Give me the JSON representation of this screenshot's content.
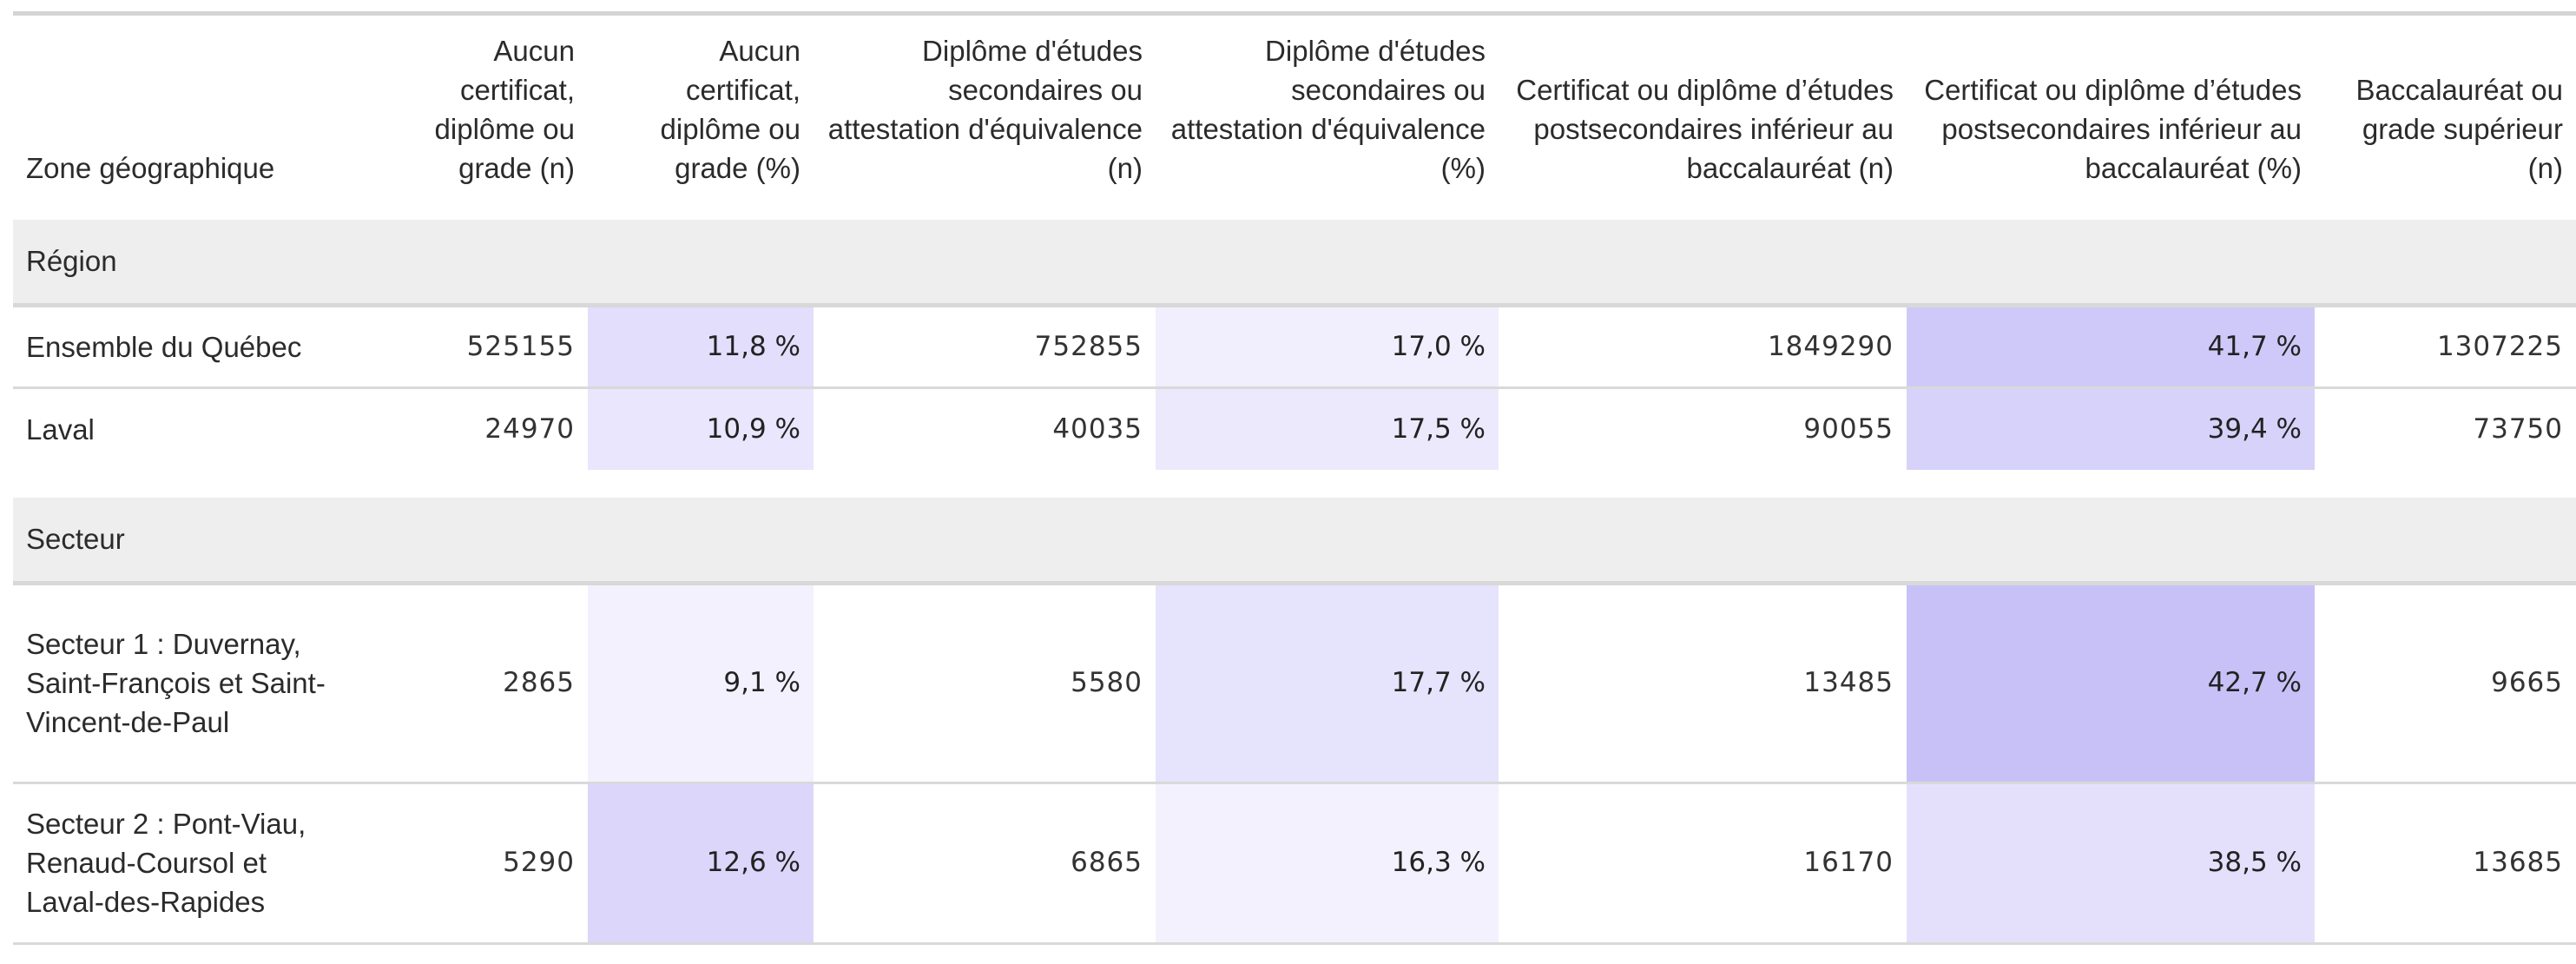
{
  "headers": [
    "Zone géographique",
    "Aucun certificat, diplôme ou grade (n)",
    "Aucun certificat, diplôme ou grade (%)",
    "Diplôme d'études secondaires ou attestation d'équivalence (n)",
    "Diplôme d'études secondaires ou attestation d'équivalence (%)",
    "Certificat ou diplôme d’études postsecondaires inférieur au baccalauréat (n)",
    "Certificat ou diplôme d’études postsecondaires inférieur au baccalauréat (%)",
    "Baccalauréat ou grade supérieur (n)"
  ],
  "groups": [
    {
      "label": "Région",
      "rows": [
        {
          "zone": "Ensemble du Québec",
          "cells": [
            "525155",
            "11,8 %",
            "752855",
            "17,0 %",
            "1849290",
            "41,7 %",
            "1307225"
          ],
          "shades": [
            "",
            "#e3defc",
            "",
            "#f1effd",
            "",
            "#cfc9f9",
            ""
          ]
        },
        {
          "zone": "Laval",
          "cells": [
            "24970",
            "10,9 %",
            "40035",
            "17,5 %",
            "90055",
            "39,4 %",
            "73750"
          ],
          "shades": [
            "",
            "#e9e6fd",
            "",
            "#ece9fd",
            "",
            "#d7d2fa",
            ""
          ]
        }
      ]
    },
    {
      "label": "Secteur",
      "rows": [
        {
          "zone": "Secteur 1 : Duvernay, Saint-François et Saint-Vincent-de-Paul",
          "cells": [
            "2865",
            "9,1 %",
            "5580",
            "17,7 %",
            "13485",
            "42,7 %",
            "9665"
          ],
          "shades": [
            "",
            "#f3f1fe",
            "",
            "#e6e3fc",
            "",
            "#c8c1f8",
            ""
          ]
        },
        {
          "zone": "Secteur 2 : Pont-Viau, Renaud-Coursol et Laval-des-Rapides",
          "cells": [
            "5290",
            "12,6 %",
            "6865",
            "16,3 %",
            "16170",
            "38,5 %",
            "13685"
          ],
          "shades": [
            "",
            "#dcd6fb",
            "",
            "#f3f1fe",
            "",
            "#e4e0fc",
            ""
          ]
        }
      ]
    }
  ]
}
